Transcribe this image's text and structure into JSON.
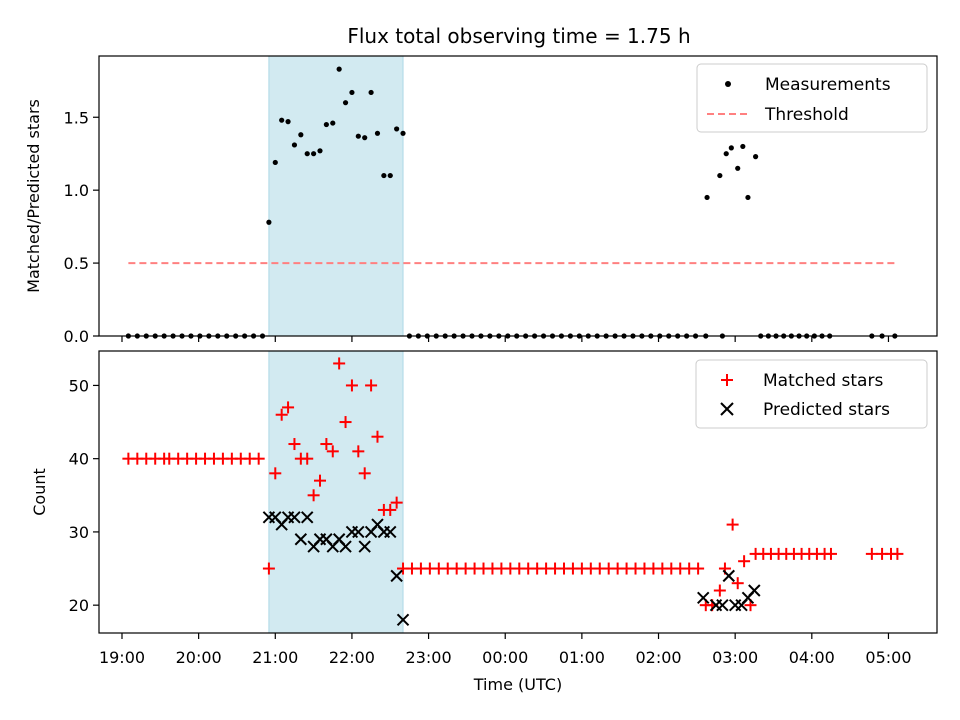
{
  "chart_data": [
    {
      "type": "scatter",
      "title": "Flux total observing time = 1.75 h",
      "xlabel": "",
      "ylabel": "Matched/Predicted stars",
      "ylim": [
        0,
        1.92
      ],
      "yticks": [
        0.0,
        0.5,
        1.0,
        1.5
      ],
      "ytick_labels": [
        "0.0",
        "0.5",
        "1.0",
        "1.5"
      ],
      "xlim": [
        "18:42",
        "05:38"
      ],
      "legend_position": "top-right",
      "shaded_region": {
        "x_start": "20:55",
        "x_end": "22:40",
        "color": "#add8e6"
      },
      "series": [
        {
          "name": "Measurements",
          "kind": "points",
          "color": "#000000",
          "points": [
            [
              "19:05",
              0
            ],
            [
              "19:12",
              0
            ],
            [
              "19:19",
              0
            ],
            [
              "19:26",
              0
            ],
            [
              "19:33",
              0
            ],
            [
              "19:40",
              0
            ],
            [
              "19:47",
              0
            ],
            [
              "19:54",
              0
            ],
            [
              "20:01",
              0
            ],
            [
              "20:08",
              0
            ],
            [
              "20:15",
              0
            ],
            [
              "20:22",
              0
            ],
            [
              "20:29",
              0
            ],
            [
              "20:36",
              0
            ],
            [
              "20:43",
              0
            ],
            [
              "20:50",
              0
            ],
            [
              "20:55",
              0.78
            ],
            [
              "21:00",
              1.19
            ],
            [
              "21:05",
              1.48
            ],
            [
              "21:10",
              1.47
            ],
            [
              "21:15",
              1.31
            ],
            [
              "21:20",
              1.38
            ],
            [
              "21:25",
              1.25
            ],
            [
              "21:30",
              1.25
            ],
            [
              "21:35",
              1.27
            ],
            [
              "21:40",
              1.45
            ],
            [
              "21:45",
              1.46
            ],
            [
              "21:50",
              1.83
            ],
            [
              "21:55",
              1.6
            ],
            [
              "22:00",
              1.67
            ],
            [
              "22:05",
              1.37
            ],
            [
              "22:10",
              1.36
            ],
            [
              "22:15",
              1.67
            ],
            [
              "22:20",
              1.39
            ],
            [
              "22:25",
              1.1
            ],
            [
              "22:30",
              1.1
            ],
            [
              "22:35",
              1.42
            ],
            [
              "22:40",
              1.39
            ],
            [
              "22:45",
              0
            ],
            [
              "22:52",
              0
            ],
            [
              "22:59",
              0
            ],
            [
              "23:06",
              0
            ],
            [
              "23:13",
              0
            ],
            [
              "23:20",
              0
            ],
            [
              "23:27",
              0
            ],
            [
              "23:34",
              0
            ],
            [
              "23:41",
              0
            ],
            [
              "23:48",
              0
            ],
            [
              "23:55",
              0
            ],
            [
              "00:02",
              0
            ],
            [
              "00:09",
              0
            ],
            [
              "00:16",
              0
            ],
            [
              "00:23",
              0
            ],
            [
              "00:30",
              0
            ],
            [
              "00:37",
              0
            ],
            [
              "00:44",
              0
            ],
            [
              "00:51",
              0
            ],
            [
              "00:58",
              0
            ],
            [
              "01:05",
              0
            ],
            [
              "01:12",
              0
            ],
            [
              "01:19",
              0
            ],
            [
              "01:26",
              0
            ],
            [
              "01:33",
              0
            ],
            [
              "01:40",
              0
            ],
            [
              "01:47",
              0
            ],
            [
              "01:54",
              0
            ],
            [
              "02:01",
              0
            ],
            [
              "02:08",
              0
            ],
            [
              "02:15",
              0
            ],
            [
              "02:22",
              0
            ],
            [
              "02:29",
              0
            ],
            [
              "02:37",
              0
            ],
            [
              "02:50",
              0
            ],
            [
              "02:38",
              0.95
            ],
            [
              "02:48",
              1.1
            ],
            [
              "02:53",
              1.25
            ],
            [
              "02:57",
              1.29
            ],
            [
              "03:02",
              1.15
            ],
            [
              "03:06",
              1.3
            ],
            [
              "03:10",
              0.95
            ],
            [
              "03:16",
              1.23
            ],
            [
              "03:20",
              0
            ],
            [
              "03:26",
              0
            ],
            [
              "03:32",
              0
            ],
            [
              "03:38",
              0
            ],
            [
              "03:44",
              0
            ],
            [
              "03:50",
              0
            ],
            [
              "03:56",
              0
            ],
            [
              "04:02",
              0
            ],
            [
              "04:08",
              0
            ],
            [
              "04:14",
              0
            ],
            [
              "04:47",
              0
            ],
            [
              "04:55",
              0
            ],
            [
              "05:05",
              0
            ]
          ]
        },
        {
          "name": "Threshold",
          "kind": "dashed-line",
          "color": "#ff8080",
          "points": [
            [
              "19:05",
              0.5
            ],
            [
              "05:05",
              0.5
            ]
          ]
        }
      ]
    },
    {
      "type": "scatter",
      "title": "",
      "xlabel": "Time (UTC)",
      "ylabel": "Count",
      "ylim": [
        16.2,
        54.7
      ],
      "yticks": [
        20,
        30,
        40,
        50
      ],
      "ytick_labels": [
        "20",
        "30",
        "40",
        "50"
      ],
      "xlim": [
        "18:42",
        "05:38"
      ],
      "xticks": [
        "19:00",
        "20:00",
        "21:00",
        "22:00",
        "23:00",
        "00:00",
        "01:00",
        "02:00",
        "03:00",
        "04:00",
        "05:00"
      ],
      "legend_position": "top-right",
      "shaded_region": {
        "x_start": "20:55",
        "x_end": "22:40",
        "color": "#add8e6"
      },
      "series": [
        {
          "name": "Matched stars",
          "kind": "plus",
          "color": "#ff0000",
          "points": [
            [
              "19:05",
              40
            ],
            [
              "19:12",
              40
            ],
            [
              "19:19",
              40
            ],
            [
              "19:26",
              40
            ],
            [
              "19:33",
              40
            ],
            [
              "19:37",
              40
            ],
            [
              "19:44",
              40
            ],
            [
              "19:51",
              40
            ],
            [
              "19:58",
              40
            ],
            [
              "20:05",
              40
            ],
            [
              "20:12",
              40
            ],
            [
              "20:19",
              40
            ],
            [
              "20:26",
              40
            ],
            [
              "20:33",
              40
            ],
            [
              "20:40",
              40
            ],
            [
              "20:47",
              40
            ],
            [
              "20:55",
              25
            ],
            [
              "21:00",
              38
            ],
            [
              "21:05",
              46
            ],
            [
              "21:10",
              47
            ],
            [
              "21:15",
              42
            ],
            [
              "21:20",
              40
            ],
            [
              "21:25",
              40
            ],
            [
              "21:30",
              35
            ],
            [
              "21:35",
              37
            ],
            [
              "21:40",
              42
            ],
            [
              "21:45",
              41
            ],
            [
              "21:50",
              53
            ],
            [
              "21:55",
              45
            ],
            [
              "22:00",
              50
            ],
            [
              "22:05",
              41
            ],
            [
              "22:10",
              38
            ],
            [
              "22:15",
              50
            ],
            [
              "22:20",
              43
            ],
            [
              "22:25",
              33
            ],
            [
              "22:30",
              33
            ],
            [
              "22:35",
              34
            ],
            [
              "22:40",
              25
            ],
            [
              "22:47",
              25
            ],
            [
              "22:54",
              25
            ],
            [
              "23:01",
              25
            ],
            [
              "23:08",
              25
            ],
            [
              "23:15",
              25
            ],
            [
              "23:22",
              25
            ],
            [
              "23:29",
              25
            ],
            [
              "23:36",
              25
            ],
            [
              "23:43",
              25
            ],
            [
              "23:50",
              25
            ],
            [
              "23:57",
              25
            ],
            [
              "00:04",
              25
            ],
            [
              "00:11",
              25
            ],
            [
              "00:18",
              25
            ],
            [
              "00:25",
              25
            ],
            [
              "00:32",
              25
            ],
            [
              "00:39",
              25
            ],
            [
              "00:46",
              25
            ],
            [
              "00:53",
              25
            ],
            [
              "01:00",
              25
            ],
            [
              "01:07",
              25
            ],
            [
              "01:14",
              25
            ],
            [
              "01:21",
              25
            ],
            [
              "01:28",
              25
            ],
            [
              "01:35",
              25
            ],
            [
              "01:42",
              25
            ],
            [
              "01:49",
              25
            ],
            [
              "01:56",
              25
            ],
            [
              "02:03",
              25
            ],
            [
              "02:10",
              25
            ],
            [
              "02:17",
              25
            ],
            [
              "02:24",
              25
            ],
            [
              "02:31",
              25
            ],
            [
              "02:37",
              20
            ],
            [
              "02:42",
              20
            ],
            [
              "02:48",
              22
            ],
            [
              "02:52",
              25
            ],
            [
              "02:58",
              31
            ],
            [
              "03:02",
              23
            ],
            [
              "03:07",
              26
            ],
            [
              "03:12",
              20
            ],
            [
              "03:16",
              27
            ],
            [
              "03:22",
              27
            ],
            [
              "03:28",
              27
            ],
            [
              "03:34",
              27
            ],
            [
              "03:40",
              27
            ],
            [
              "03:46",
              27
            ],
            [
              "03:52",
              27
            ],
            [
              "03:58",
              27
            ],
            [
              "04:04",
              27
            ],
            [
              "04:10",
              27
            ],
            [
              "04:15",
              27
            ],
            [
              "04:47",
              27
            ],
            [
              "04:55",
              27
            ],
            [
              "05:02",
              27
            ],
            [
              "05:07",
              27
            ]
          ]
        },
        {
          "name": "Predicted stars",
          "kind": "cross",
          "color": "#000000",
          "points": [
            [
              "20:55",
              32
            ],
            [
              "21:00",
              32
            ],
            [
              "21:05",
              31
            ],
            [
              "21:10",
              32
            ],
            [
              "21:15",
              32
            ],
            [
              "21:20",
              29
            ],
            [
              "21:25",
              32
            ],
            [
              "21:30",
              28
            ],
            [
              "21:35",
              29
            ],
            [
              "21:40",
              29
            ],
            [
              "21:45",
              28
            ],
            [
              "21:50",
              29
            ],
            [
              "21:55",
              28
            ],
            [
              "22:00",
              30
            ],
            [
              "22:05",
              30
            ],
            [
              "22:10",
              28
            ],
            [
              "22:15",
              30
            ],
            [
              "22:20",
              31
            ],
            [
              "22:25",
              30
            ],
            [
              "22:30",
              30
            ],
            [
              "22:35",
              24
            ],
            [
              "22:40",
              18
            ],
            [
              "02:35",
              21
            ],
            [
              "02:45",
              20
            ],
            [
              "02:50",
              20
            ],
            [
              "02:55",
              24
            ],
            [
              "03:00",
              20
            ],
            [
              "03:05",
              20
            ],
            [
              "03:10",
              21
            ],
            [
              "03:15",
              22
            ]
          ]
        }
      ]
    }
  ]
}
